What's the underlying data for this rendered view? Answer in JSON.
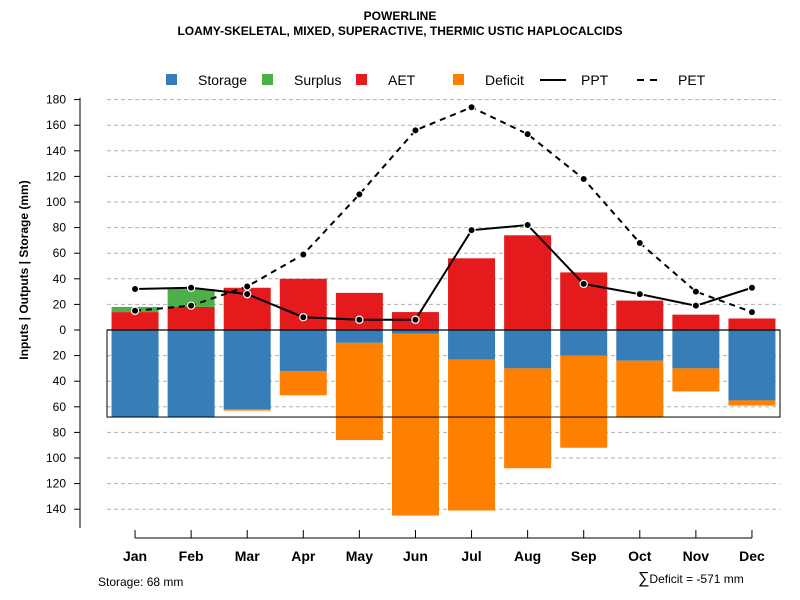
{
  "chart_data": {
    "type": "bar",
    "title": "POWERLINE",
    "subtitle": "LOAMY-SKELETAL, MIXED, SUPERACTIVE, THERMIC USTIC HAPLOCALCIDS",
    "ylabel": "Inputs | Outputs | Storage    (mm)",
    "ylim": [
      -150,
      180
    ],
    "yticks": [
      180,
      160,
      140,
      120,
      100,
      80,
      60,
      40,
      20,
      0,
      -20,
      -40,
      -60,
      -80,
      -100,
      -120,
      -140
    ],
    "ytick_labels": [
      "180",
      "160",
      "140",
      "120",
      "100",
      "80",
      "60",
      "40",
      "20",
      "0",
      "20",
      "40",
      "60",
      "80",
      "100",
      "120",
      "140"
    ],
    "categories": [
      "Jan",
      "Feb",
      "Mar",
      "Apr",
      "May",
      "Jun",
      "Jul",
      "Aug",
      "Sep",
      "Oct",
      "Nov",
      "Dec"
    ],
    "storage_capacity": 68,
    "series": [
      {
        "name": "Storage",
        "color": "#377EB8",
        "values": [
          -68,
          -68,
          -62,
          -32,
          -10,
          -3,
          -23,
          -30,
          -20,
          -24,
          -30,
          -55
        ]
      },
      {
        "name": "Surplus",
        "color": "#4DAF4A",
        "values": [
          4,
          14,
          0,
          0,
          0,
          0,
          0,
          0,
          0,
          0,
          0,
          0
        ]
      },
      {
        "name": "AET",
        "color": "#E41A1C",
        "values": [
          14,
          18,
          33,
          40,
          29,
          14,
          56,
          74,
          45,
          23,
          12,
          9
        ]
      },
      {
        "name": "Deficit",
        "color": "#FF7F00",
        "values": [
          0,
          0,
          -1,
          -19,
          -76,
          -142,
          -118,
          -78,
          -72,
          -44,
          -18,
          -4
        ]
      },
      {
        "name": "PPT",
        "style": "solid",
        "values": [
          32,
          33,
          28,
          10,
          8,
          8,
          78,
          82,
          36,
          28,
          19,
          33
        ]
      },
      {
        "name": "PET",
        "style": "dashed",
        "values": [
          15,
          19,
          34,
          59,
          106,
          156,
          174,
          153,
          118,
          68,
          30,
          14
        ]
      }
    ],
    "legend": [
      "Storage",
      "Surplus",
      "AET",
      "Deficit",
      "PPT",
      "PET"
    ],
    "legend_position": "top",
    "grid": true
  },
  "footer": {
    "storage_label": "Storage: 68 mm",
    "deficit_symbol": "∑",
    "deficit_label": "Deficit = -571 mm"
  }
}
